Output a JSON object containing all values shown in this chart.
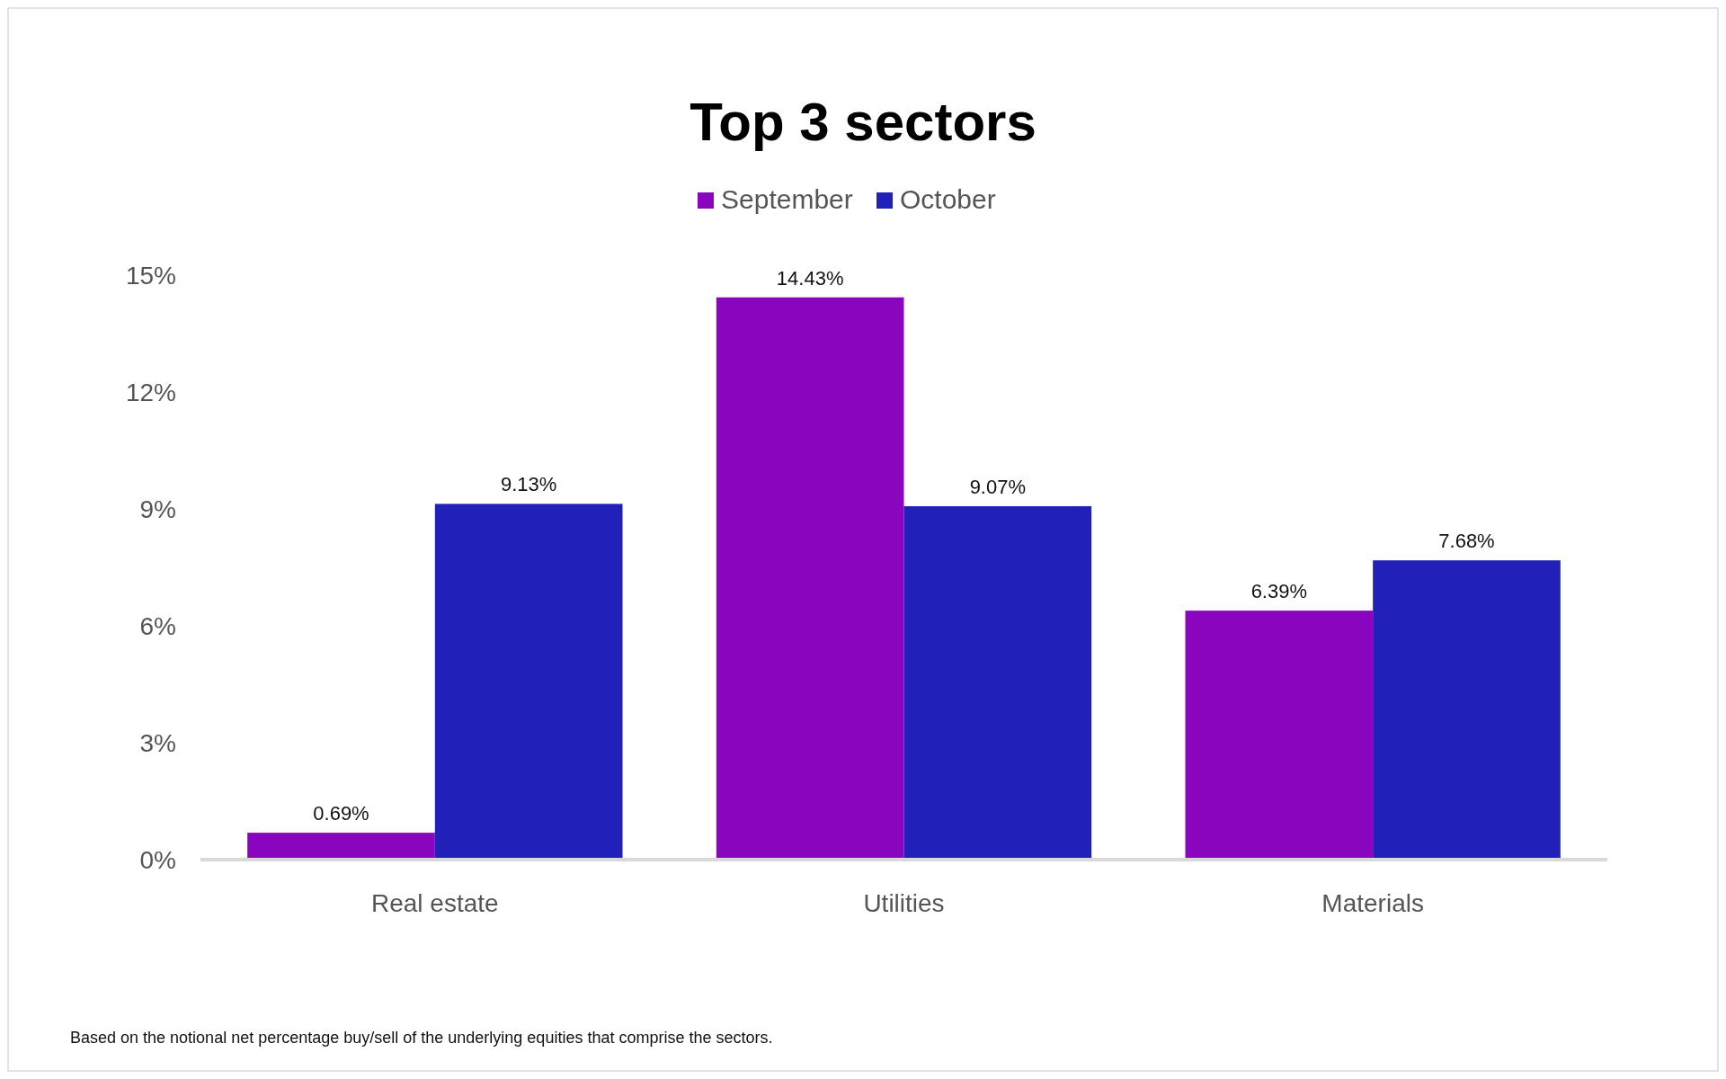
{
  "chart_data": {
    "type": "bar",
    "title": "Top 3 sectors",
    "categories": [
      "Real estate",
      "Utilities",
      "Materials"
    ],
    "series": [
      {
        "name": "September",
        "color": "#8a05be",
        "values": [
          0.69,
          14.43,
          6.39
        ],
        "value_labels": [
          "0.69%",
          "14.43%",
          "6.39%"
        ]
      },
      {
        "name": "October",
        "color": "#2121b9",
        "values": [
          9.13,
          9.07,
          7.68
        ],
        "value_labels": [
          "9.13%",
          "9.07%",
          "7.68%"
        ]
      }
    ],
    "ylim": [
      0,
      15
    ],
    "yticks": [
      {
        "value": 0,
        "label": "0%"
      },
      {
        "value": 3,
        "label": "3%"
      },
      {
        "value": 6,
        "label": "6%"
      },
      {
        "value": 9,
        "label": "9%"
      },
      {
        "value": 12,
        "label": "12%"
      },
      {
        "value": 15,
        "label": "15%"
      }
    ],
    "grid": false,
    "legend": "top",
    "annotations": [
      "Based on the notional net percentage buy/sell of the underlying equities that comprise the sectors."
    ]
  }
}
